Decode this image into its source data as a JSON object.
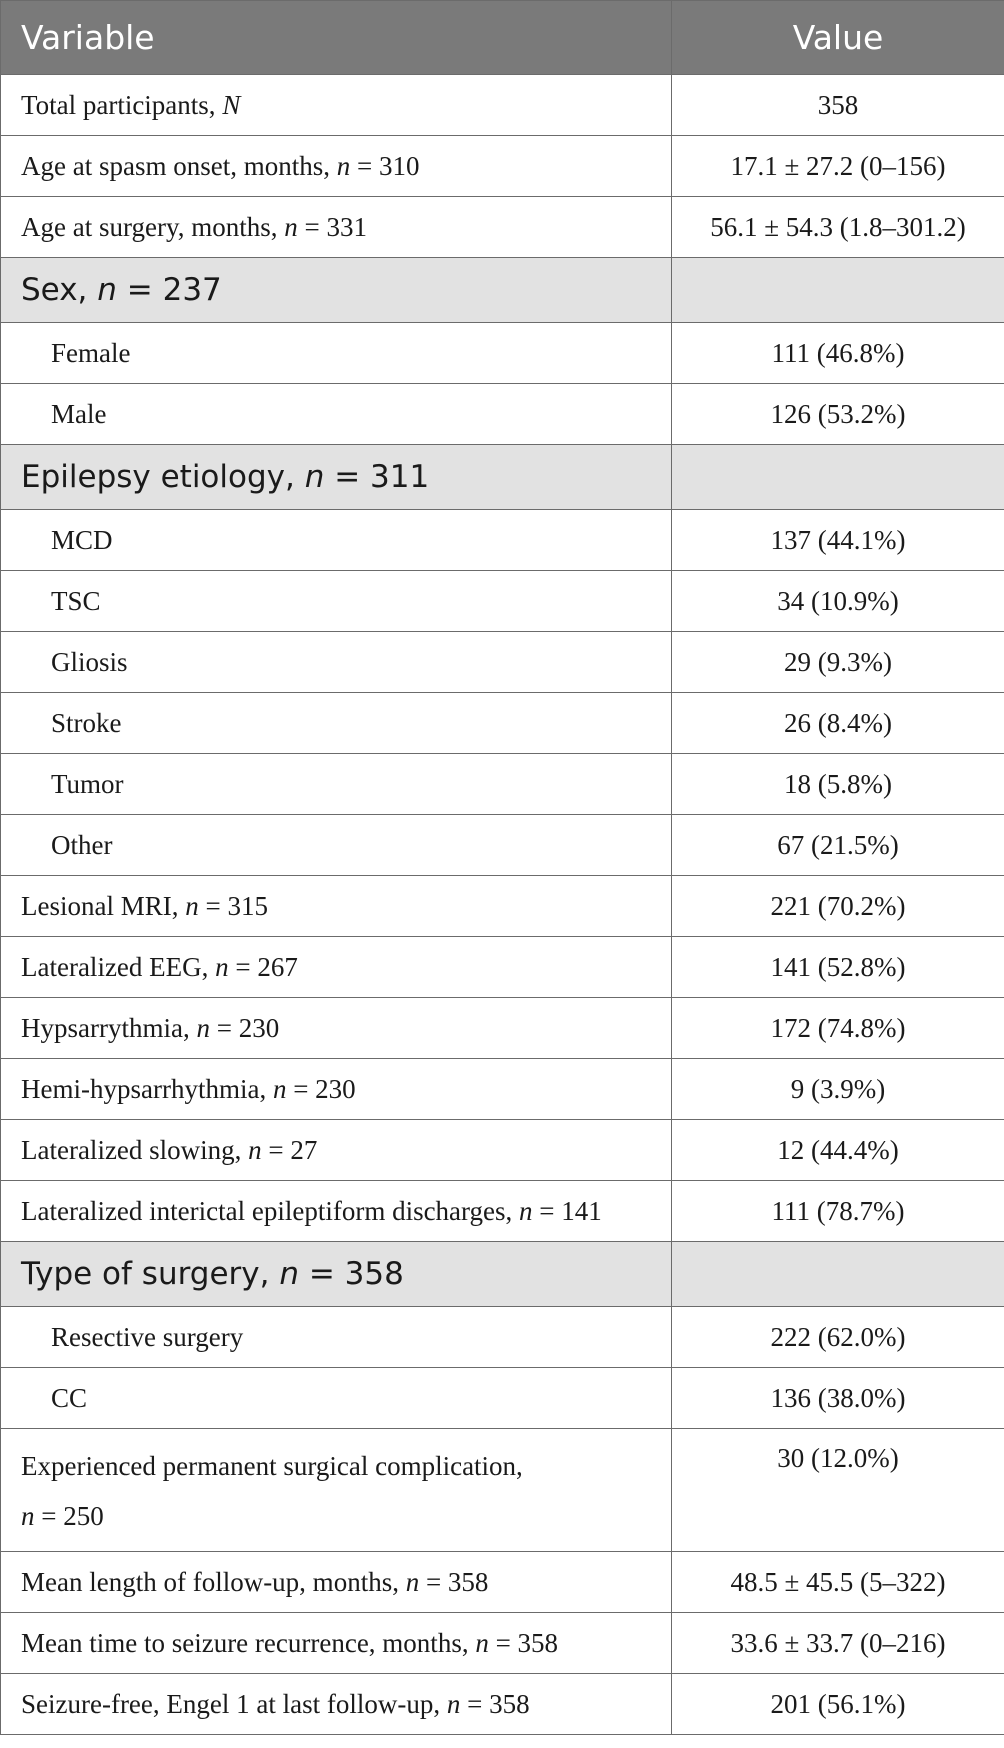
{
  "header": {
    "variable": "Variable",
    "value": "Value"
  },
  "rows": [
    {
      "label": "Total participants, ",
      "italic": "N",
      "rest": "",
      "value": "358"
    },
    {
      "label": "Age at spasm onset, months, ",
      "italic": "n",
      "rest": " = 310",
      "value": "17.1 ± 27.2 (0–156)"
    },
    {
      "label": "Age at surgery, months, ",
      "italic": "n",
      "rest": " = 331",
      "value": "56.1 ± 54.3 (1.8–301.2)"
    },
    {
      "label": "Sex, ",
      "italic": "n",
      "rest": " = 237",
      "value": ""
    },
    {
      "label": "Female",
      "value": "111 (46.8%)"
    },
    {
      "label": "Male",
      "value": "126 (53.2%)"
    },
    {
      "label": "Epilepsy etiology, ",
      "italic": "n",
      "rest": " = 311",
      "value": ""
    },
    {
      "label": "MCD",
      "value": "137 (44.1%)"
    },
    {
      "label": "TSC",
      "value": "34 (10.9%)"
    },
    {
      "label": "Gliosis",
      "value": "29 (9.3%)"
    },
    {
      "label": "Stroke",
      "value": "26 (8.4%)"
    },
    {
      "label": "Tumor",
      "value": "18 (5.8%)"
    },
    {
      "label": "Other",
      "value": "67 (21.5%)"
    },
    {
      "label": "Lesional MRI, ",
      "italic": "n",
      "rest": " = 315",
      "value": "221 (70.2%)"
    },
    {
      "label": "Lateralized EEG, ",
      "italic": "n",
      "rest": " = 267",
      "value": "141 (52.8%)"
    },
    {
      "label": "Hypsarrythmia, ",
      "italic": "n",
      "rest": " = 230",
      "value": "172 (74.8%)"
    },
    {
      "label": "Hemi-hypsarrhythmia, ",
      "italic": "n",
      "rest": " = 230",
      "value": "9 (3.9%)"
    },
    {
      "label": "Lateralized slowing, ",
      "italic": "n",
      "rest": " = 27",
      "value": "12 (44.4%)"
    },
    {
      "label": "Lateralized interictal epileptiform discharges, ",
      "italic": "n",
      "rest": " = 141",
      "value": "111 (78.7%)"
    },
    {
      "label": "Type of surgery, ",
      "italic": "n",
      "rest": " = 358",
      "value": ""
    },
    {
      "label": "Resective surgery",
      "value": "222 (62.0%)"
    },
    {
      "label": "CC",
      "value": "136 (38.0%)"
    },
    {
      "label": "Experienced permanent surgical complication,",
      "italic": "n",
      "rest": " = 250",
      "value": "30 (12.0%)"
    },
    {
      "label": "Mean length of follow-up, months, ",
      "italic": "n",
      "rest": " = 358",
      "value": "48.5 ± 45.5 (5–322)"
    },
    {
      "label": "Mean time to seizure recurrence, months, ",
      "italic": "n",
      "rest": " = 358",
      "value": "33.6 ± 33.7 (0–216)"
    },
    {
      "label": "Seizure-free, Engel 1 at last follow-up, ",
      "italic": "n",
      "rest": " = 358",
      "value": "201 (56.1%)"
    }
  ]
}
